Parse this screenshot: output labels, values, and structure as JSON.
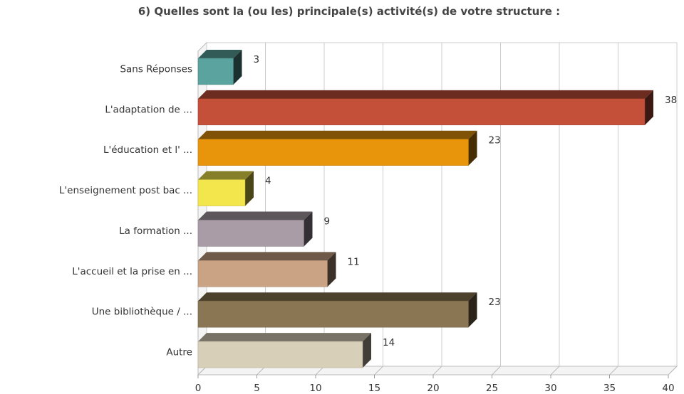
{
  "chart_data": {
    "type": "bar3d_horizontal",
    "title": "6) Quelles sont la (ou les) principale(s) activité(s) de votre structure :",
    "categories": [
      "Sans Réponses",
      "L'adaptation de ...",
      "L'éducation et l' ...",
      "L'enseignement post bac ...",
      "La formation ...",
      "L'accueil et la prise en ...",
      "Une bibliothèque / ...",
      "Autre"
    ],
    "values": [
      3,
      38,
      23,
      4,
      9,
      11,
      23,
      14
    ],
    "colors": [
      "#5aa39e",
      "#c4503a",
      "#e8950c",
      "#f3e64c",
      "#a99ca6",
      "#c9a384",
      "#8a7652",
      "#d8cfb8"
    ],
    "xlim": [
      0,
      40
    ],
    "xticks": [
      0,
      5,
      10,
      15,
      20,
      25,
      30,
      35,
      40
    ],
    "grid": true
  }
}
